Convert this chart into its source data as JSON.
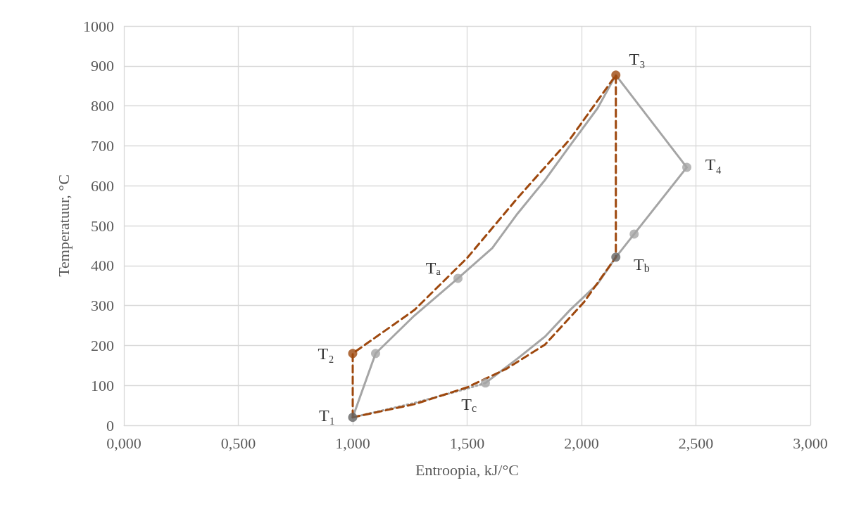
{
  "chart_data": {
    "type": "line",
    "xlabel": "Entroopia, kJ/°C",
    "ylabel": "Temperatuur, °C",
    "xlim": [
      0,
      3
    ],
    "xticks": [
      {
        "value": 0,
        "label": "0,000"
      },
      {
        "value": 0.5,
        "label": "0,500"
      },
      {
        "value": 1,
        "label": "1,000"
      },
      {
        "value": 1.5,
        "label": "1,500"
      },
      {
        "value": 2,
        "label": "2,000"
      },
      {
        "value": 2.5,
        "label": "2,500"
      },
      {
        "value": 3,
        "label": "3,000"
      }
    ],
    "ylim": [
      0,
      1000
    ],
    "yticks": [
      0,
      100,
      200,
      300,
      400,
      500,
      600,
      700,
      800,
      900,
      1000
    ],
    "grid": true,
    "marker": "none",
    "series": [
      {
        "color": "#a5a5a5",
        "line_style": "solid",
        "x": [
          1.0,
          1.1,
          1.27,
          1.46,
          1.61,
          1.72,
          1.84,
          1.95,
          2.07,
          2.15,
          2.46,
          2.23,
          2.15,
          2.07,
          1.95,
          1.84,
          1.72,
          1.58
        ],
        "values": [
          20,
          180,
          275,
          368,
          444,
          530,
          614,
          701,
          794,
          877,
          646,
          479,
          421,
          354,
          289,
          222,
          167,
          106
        ]
      },
      {
        "color": "#a5a5a5",
        "line_style": "dotted",
        "x": [
          1.58,
          1.5,
          1.27,
          1.0
        ],
        "values": [
          106,
          92,
          56,
          20
        ]
      },
      {
        "color": "#9e480e",
        "line_style": "dashed",
        "x": [
          1.0,
          1.0,
          1.27,
          1.5,
          1.72,
          1.95,
          2.15,
          2.15
        ],
        "values": [
          20,
          180,
          289,
          419,
          569,
          717,
          877,
          421
        ]
      },
      {
        "color": "#9e480e",
        "line_style": "dashed",
        "x": [
          1.0,
          1.27,
          1.5,
          1.67,
          1.84,
          2.01,
          2.15
        ],
        "values": [
          20,
          53,
          95,
          141,
          202,
          308,
          421
        ]
      },
      {
        "type": "scatter",
        "marker": "circle",
        "colors": [
          "#636363",
          "#9e480e",
          "#a5a5a5",
          "#a5a5a5",
          "#9e480e",
          "#a5a5a5",
          "#a5a5a5",
          "#636363",
          "#a5a5a5"
        ],
        "x": [
          1.0,
          1.0,
          1.1,
          1.46,
          2.15,
          2.46,
          2.23,
          2.15,
          1.58
        ],
        "values": [
          20,
          180,
          180,
          368,
          877,
          646,
          479,
          421,
          106
        ]
      }
    ],
    "annotations": [
      {
        "text": "T₁",
        "x": 1.0,
        "y": 20
      },
      {
        "text": "T₂",
        "x": 1.0,
        "y": 180
      },
      {
        "text": "Tₐ",
        "x": 1.46,
        "y": 368
      },
      {
        "text": "T₃",
        "x": 2.15,
        "y": 877
      },
      {
        "text": "T₄",
        "x": 2.46,
        "y": 646
      },
      {
        "text": "T$_{b}$",
        "x": 2.15,
        "y": 421
      },
      {
        "text": "T$_{c}$",
        "x": 1.58,
        "y": 106
      }
    ]
  }
}
